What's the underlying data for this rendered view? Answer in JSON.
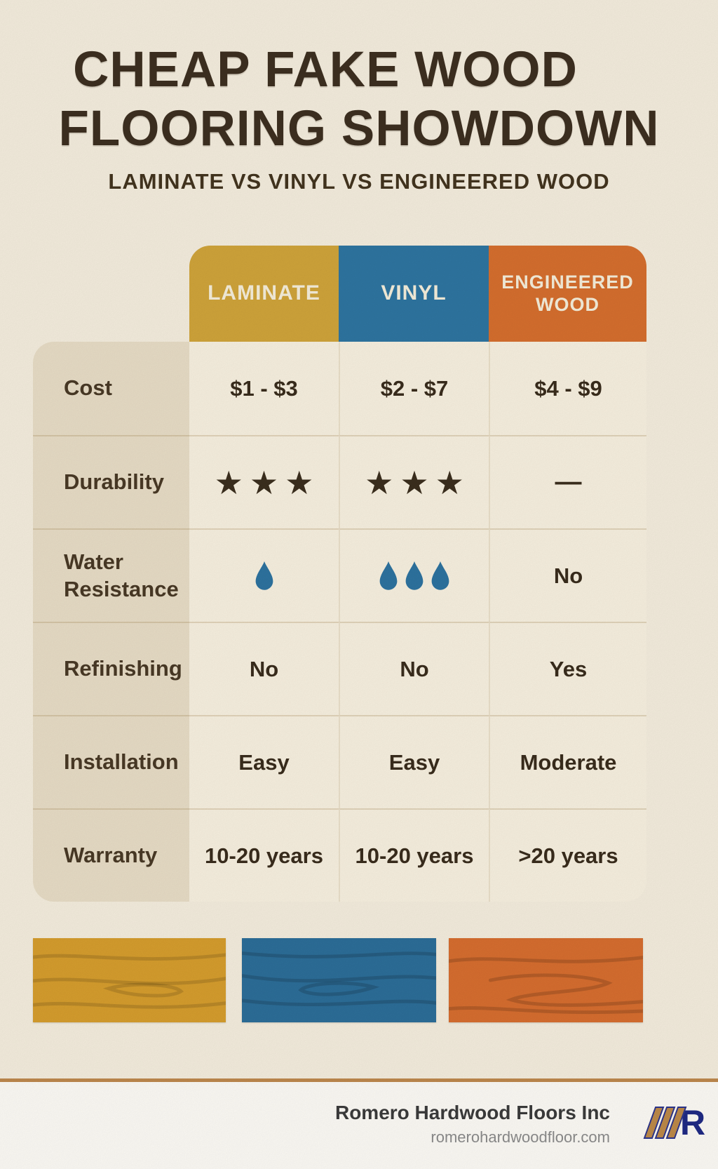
{
  "page": {
    "title_line1": "CHEAP FAKE WOOD",
    "title_line2": "FLOORING SHOWDOWN",
    "subtitle": "LAMINATE VS VINYL VS ENGINEERED WOOD"
  },
  "colors": {
    "background": "#f7f0e0",
    "title_text": "#3e3021",
    "laminate_header": "#d2a63b",
    "vinyl_header": "#2f76a2",
    "engineered_header": "#d8702f",
    "label_column": "#eadfc8",
    "cell_background": "#faf3e2",
    "body_text": "#3a2d1d",
    "droplet": "#2e74a1",
    "laminate_swatch": "#d89f2e",
    "vinyl_swatch": "#2d6f9a",
    "engineered_swatch": "#d96f30",
    "footer_rule": "#c08a4e",
    "logo_navy": "#202b86",
    "logo_tan": "#bf8b4a"
  },
  "chart_data": {
    "type": "table",
    "title": "Cheap Fake Wood Flooring Showdown",
    "subtitle": "Laminate vs Vinyl vs Engineered Wood",
    "columns": [
      {
        "label": "LAMINATE",
        "color": "#d2a63b"
      },
      {
        "label": "VINYL",
        "color": "#2f76a2"
      },
      {
        "label": "ENGINEERED WOOD",
        "color": "#d8702f"
      }
    ],
    "rows": [
      {
        "label": "Cost",
        "kind": "text",
        "display": [
          "$1 - $3",
          "$2 - $7",
          "$4 - $9"
        ]
      },
      {
        "label": "Durability",
        "kind": "stars",
        "stars": [
          3,
          3,
          null
        ],
        "display": [
          "★★★",
          "★★★",
          "—"
        ]
      },
      {
        "label": "Water Resistance",
        "kind": "droplets",
        "droplets": [
          1,
          3,
          0
        ],
        "display": [
          "",
          "",
          "No"
        ]
      },
      {
        "label": "Refinishing",
        "kind": "text",
        "display": [
          "No",
          "No",
          "Yes"
        ]
      },
      {
        "label": "Installation",
        "kind": "text",
        "display": [
          "Easy",
          "Easy",
          "Moderate"
        ]
      },
      {
        "label": "Warranty",
        "kind": "text",
        "display": [
          "10-20 years",
          "10-20 years",
          ">20 years"
        ]
      }
    ]
  },
  "swatches": [
    {
      "name": "laminate-wood",
      "color": "#d89f2e"
    },
    {
      "name": "vinyl-wood",
      "color": "#2d6f9a"
    },
    {
      "name": "engineered-wood",
      "color": "#d96f30"
    }
  ],
  "footer": {
    "company": "Romero Hardwood Floors Inc",
    "website": "romerohardwoodfloor.com",
    "logo_letter": "R"
  }
}
